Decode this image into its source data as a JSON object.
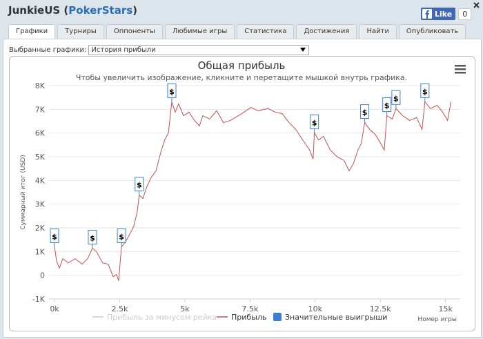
{
  "header": {
    "title": [
      "JunkieUS (",
      "PokerStars",
      ")"
    ],
    "like": "Like",
    "like_count": 0
  },
  "tabs": [
    "Графики",
    "Турниры",
    "Оппоненты",
    "Любимые игры",
    "Статистика",
    "Достижения",
    "Найти",
    "Опубликовать"
  ],
  "selected_tab": 0,
  "selector": {
    "label": "Выбранные графики:",
    "value": "История прибыли"
  },
  "chart_data": {
    "type": "line",
    "title": "Общая прибыль",
    "subtitle": "Чтобы увеличить изображение, кликните и перетащите мышкой внутрь графика.",
    "y_label": "Суммарный итог (USD)",
    "x_label": "Номер игры",
    "xlim": [
      0,
      15300
    ],
    "xticks": [
      {
        "value": 0,
        "label": "0k"
      },
      {
        "value": 2500,
        "label": "2.5k"
      },
      {
        "value": 5000,
        "label": "5k"
      },
      {
        "value": 7500,
        "label": "7.5k"
      },
      {
        "value": 10000,
        "label": "10k"
      },
      {
        "value": 12500,
        "label": "12.5k"
      },
      {
        "value": 15000,
        "label": "15k"
      }
    ],
    "ylim": [
      -1000,
      8000
    ],
    "yticks": [
      {
        "value": -1000,
        "label": "-1K"
      },
      0,
      {
        "value": 1000,
        "label": "1K"
      },
      {
        "value": 2000,
        "label": "2K"
      },
      {
        "value": 3000,
        "label": "3K"
      },
      {
        "value": 4000,
        "label": "4K"
      },
      {
        "value": 5000,
        "label": "5K"
      },
      {
        "value": 6000,
        "label": "6K"
      },
      {
        "value": 7000,
        "label": "7K"
      },
      {
        "value": 8000,
        "label": "8K"
      }
    ],
    "grid": true,
    "series": [
      {
        "name": "Прибыль за минусом рейка",
        "color": "#cccccc",
        "visible": false,
        "x": [],
        "values": []
      },
      {
        "name": "Прибыль",
        "color": "#c0504d",
        "visible": true,
        "x": [
          0,
          80,
          185,
          320,
          530,
          790,
          1060,
          1270,
          1455,
          1610,
          1850,
          2060,
          2250,
          2380,
          2460,
          2570,
          2720,
          2910,
          3040,
          3170,
          3250,
          3390,
          3520,
          3700,
          3890,
          4100,
          4230,
          4370,
          4500,
          4630,
          4760,
          4950,
          5160,
          5370,
          5560,
          5690,
          5950,
          6220,
          6480,
          6750,
          7140,
          7540,
          7800,
          8200,
          8460,
          8730,
          9000,
          9260,
          9520,
          9790,
          9920,
          9970,
          10130,
          10320,
          10580,
          10850,
          11110,
          11300,
          11460,
          11640,
          11770,
          11900,
          12090,
          12300,
          12510,
          12650,
          12750,
          12960,
          13100,
          13360,
          13620,
          13890,
          14100,
          14210,
          14420,
          14680,
          14890,
          15080,
          15210
        ],
        "values": [
          1200,
          600,
          300,
          700,
          520,
          700,
          470,
          700,
          1140,
          990,
          520,
          470,
          -60,
          30,
          -230,
          1200,
          1400,
          1780,
          2070,
          2650,
          3380,
          3240,
          3670,
          4110,
          4400,
          5280,
          5710,
          6010,
          7320,
          6880,
          7230,
          6730,
          6880,
          6530,
          6300,
          6730,
          6590,
          6940,
          6440,
          6530,
          6790,
          7080,
          6940,
          7030,
          6880,
          6820,
          6440,
          6150,
          5710,
          5280,
          4900,
          6010,
          5710,
          5860,
          5280,
          4990,
          4840,
          4400,
          4690,
          5280,
          5570,
          6440,
          6150,
          5950,
          5570,
          5280,
          6730,
          6590,
          7030,
          6730,
          6530,
          6650,
          6150,
          7320,
          7030,
          7170,
          6880,
          6530,
          7320
        ]
      },
      {
        "name": "Значительные выигрыши",
        "color": "#3a7fd5",
        "visible": true,
        "flag_label": "$",
        "x": [
          0,
          1455,
          2570,
          3250,
          4500,
          9970,
          11900,
          12750,
          13100,
          14210
        ],
        "values": [
          1200,
          1140,
          1200,
          3380,
          7320,
          6010,
          6440,
          6730,
          7030,
          7320
        ]
      }
    ]
  }
}
